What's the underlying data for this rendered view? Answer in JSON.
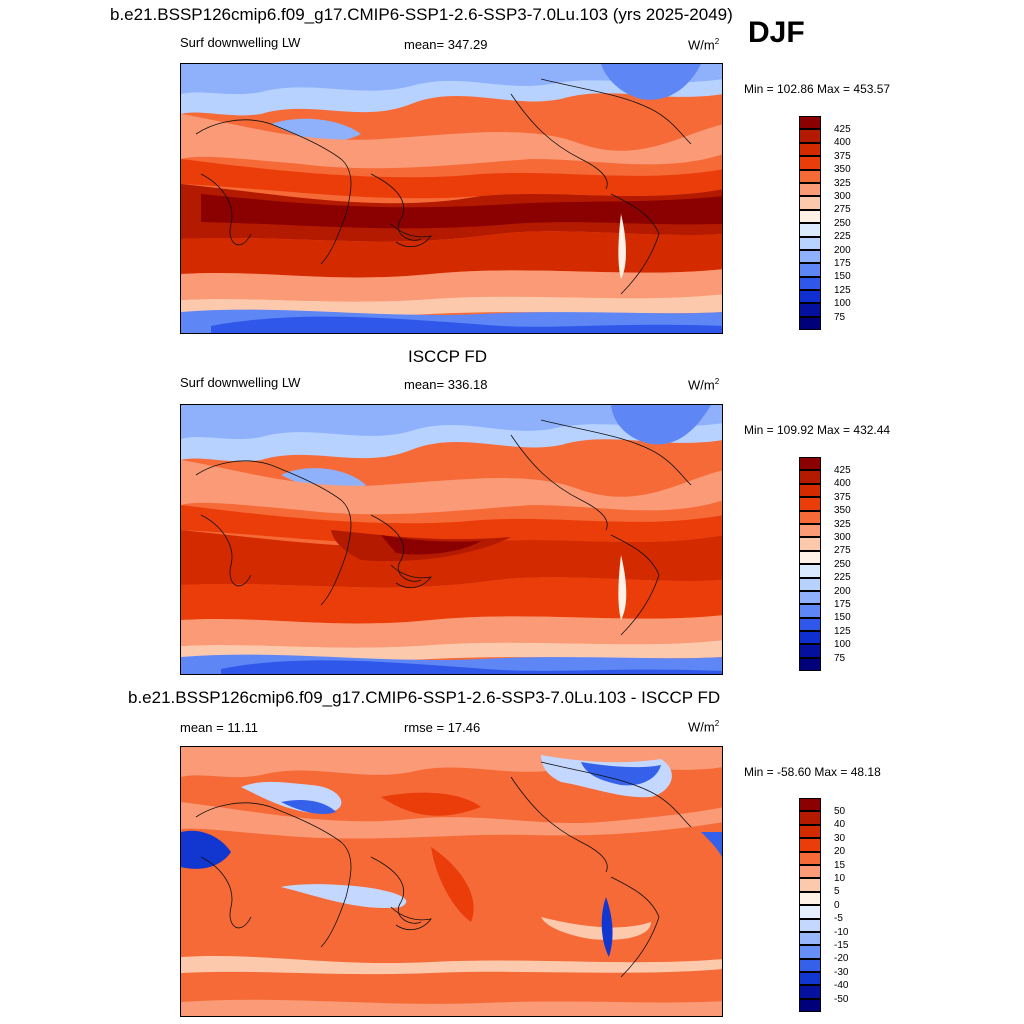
{
  "season": "DJF",
  "panels": [
    {
      "title": "b.e21.BSSP126cmip6.f09_g17.CMIP6-SSP1-2.6-SSP3-7.0Lu.103 (yrs 2025-2049)",
      "left_label": "Surf downwelling LW",
      "center_label": "mean= 347.29",
      "units": "W/m",
      "units_sup": "2",
      "minmax": "Min = 102.86 Max = 453.57",
      "colorbar": {
        "labels": [
          "425",
          "400",
          "375",
          "350",
          "325",
          "300",
          "275",
          "250",
          "225",
          "200",
          "175",
          "150",
          "125",
          "100",
          "75"
        ],
        "colors": [
          "#8b0000",
          "#b31a00",
          "#d42a00",
          "#ea3d0a",
          "#f56a37",
          "#fa9a76",
          "#fdc9ad",
          "#fff1e6",
          "#dbeaff",
          "#b7d2ff",
          "#8fb1fb",
          "#5f86f5",
          "#2f57ea",
          "#0f2fd0",
          "#06109e",
          "#00007a"
        ]
      }
    },
    {
      "title": "ISCCP FD",
      "left_label": "Surf downwelling LW",
      "center_label": "mean= 336.18",
      "units": "W/m",
      "units_sup": "2",
      "minmax": "Min = 109.92 Max = 432.44",
      "colorbar": {
        "labels": [
          "425",
          "400",
          "375",
          "350",
          "325",
          "300",
          "275",
          "250",
          "225",
          "200",
          "175",
          "150",
          "125",
          "100",
          "75"
        ],
        "colors": [
          "#8b0000",
          "#b31a00",
          "#d42a00",
          "#ea3d0a",
          "#f56a37",
          "#fa9a76",
          "#fdc9ad",
          "#fff1e6",
          "#dbeaff",
          "#b7d2ff",
          "#8fb1fb",
          "#5f86f5",
          "#2f57ea",
          "#0f2fd0",
          "#06109e",
          "#00007a"
        ]
      }
    },
    {
      "title": "b.e21.BSSP126cmip6.f09_g17.CMIP6-SSP1-2.6-SSP3-7.0Lu.103 - ISCCP FD",
      "left_label": "mean =  11.11",
      "center_label": "rmse =  17.46",
      "units": "W/m",
      "units_sup": "2",
      "minmax": "Min = -58.60 Max =  48.18",
      "colorbar": {
        "labels": [
          "50",
          "40",
          "30",
          "20",
          "15",
          "10",
          "5",
          "0",
          "-5",
          "-10",
          "-15",
          "-20",
          "-30",
          "-40",
          "-50"
        ],
        "colors": [
          "#8b0000",
          "#b31a00",
          "#d42a00",
          "#ea3d0a",
          "#f56a37",
          "#fa9a76",
          "#fdc9ad",
          "#fff1e6",
          "#e6efff",
          "#c4d8ff",
          "#97b6fb",
          "#6690f5",
          "#3460ea",
          "#1236d0",
          "#06129e",
          "#00007a"
        ]
      }
    }
  ]
}
